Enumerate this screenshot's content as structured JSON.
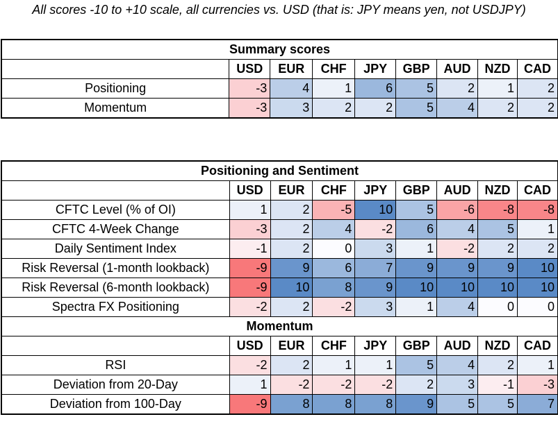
{
  "note": "All scores -10 to +10 scale, all currencies vs. USD (that is: JPY means yen, not USDJPY)",
  "currencies": [
    "USD",
    "EUR",
    "CHF",
    "JPY",
    "GBP",
    "AUD",
    "NZD",
    "CAD"
  ],
  "colors": {
    "negative_max": "#f8696b",
    "neutral": "#fcfcff",
    "positive_max": "#5a8ac6",
    "border": "#000000"
  },
  "sections": [
    {
      "title": "Summary scores",
      "rows": [
        {
          "label": "Positioning",
          "values": [
            -3,
            4,
            1,
            6,
            5,
            2,
            1,
            2
          ]
        },
        {
          "label": "Momentum",
          "values": [
            -3,
            3,
            2,
            2,
            5,
            4,
            2,
            2
          ]
        }
      ]
    },
    {
      "title": "Positioning and Sentiment",
      "rows": [
        {
          "label": "CFTC Level (% of OI)",
          "values": [
            1,
            2,
            -5,
            10,
            5,
            -6,
            -8,
            -8
          ]
        },
        {
          "label": "CFTC 4-Week Change",
          "values": [
            -3,
            2,
            4,
            -2,
            6,
            4,
            5,
            1
          ]
        },
        {
          "label": "Daily Sentiment Index",
          "values": [
            -1,
            2,
            0,
            3,
            1,
            -2,
            2,
            2
          ]
        },
        {
          "label": "Risk Reversal (1-month lookback)",
          "values": [
            -9,
            9,
            6,
            7,
            9,
            9,
            9,
            10
          ]
        },
        {
          "label": "Risk Reversal (6-month lookback)",
          "values": [
            -9,
            10,
            8,
            9,
            10,
            10,
            10,
            10
          ]
        },
        {
          "label": "Spectra FX Positioning",
          "values": [
            -2,
            2,
            -2,
            3,
            1,
            4,
            0,
            0
          ]
        }
      ]
    },
    {
      "title": "Momentum",
      "rows": [
        {
          "label": "RSI",
          "values": [
            -2,
            2,
            1,
            1,
            5,
            4,
            2,
            1
          ]
        },
        {
          "label": "Deviation from 20-Day",
          "values": [
            1,
            -2,
            -2,
            -2,
            2,
            3,
            -1,
            -3
          ]
        },
        {
          "label": "Deviation from 100-Day",
          "values": [
            -9,
            8,
            8,
            8,
            9,
            5,
            5,
            7
          ]
        }
      ]
    }
  ]
}
